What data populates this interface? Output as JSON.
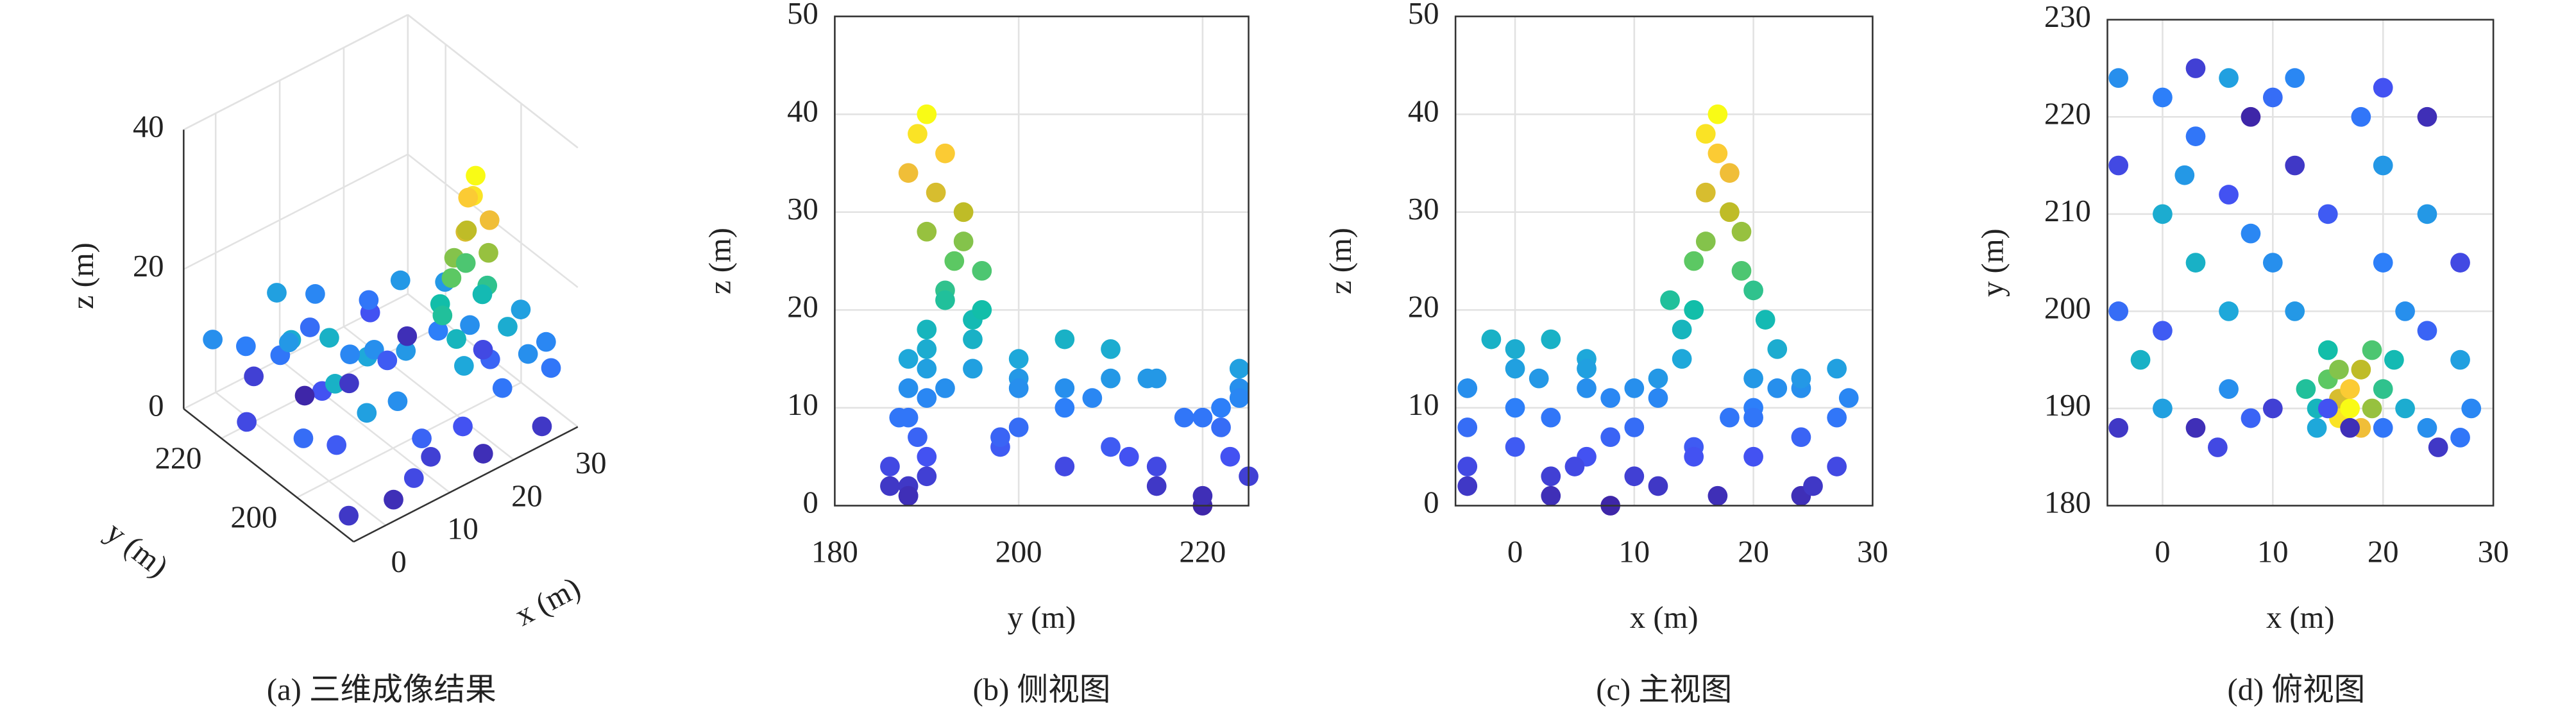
{
  "points": {
    "x": [
      -4,
      -4,
      -4,
      -4,
      0,
      0,
      0,
      0,
      3,
      3,
      3,
      3,
      6,
      6,
      6,
      6,
      8,
      8,
      8,
      -2,
      2,
      5,
      10,
      10,
      10,
      12,
      12,
      12,
      20,
      20,
      20,
      24,
      24,
      24,
      24,
      27,
      27,
      27,
      28,
      25,
      22,
      18,
      15,
      14,
      15,
      16,
      16,
      17,
      17,
      18,
      19,
      20,
      21,
      15,
      18,
      16,
      19,
      14,
      22,
      13,
      17,
      15,
      20
    ],
    "y": [
      188,
      200,
      215,
      224,
      190,
      198,
      210,
      222,
      188,
      205,
      218,
      225,
      192,
      200,
      212,
      224,
      189,
      208,
      220,
      195,
      214,
      186,
      190,
      205,
      222,
      200,
      215,
      224,
      205,
      215,
      223,
      188,
      198,
      210,
      220,
      187,
      195,
      205,
      190,
      186,
      200,
      220,
      210,
      190,
      193,
      191,
      189,
      190,
      192,
      194,
      190,
      192,
      195,
      196,
      188,
      194,
      196,
      188,
      190,
      192,
      188,
      190,
      188
    ],
    "z": [
      2,
      8,
      4,
      12,
      14,
      6,
      16,
      10,
      1,
      17,
      9,
      3,
      12,
      15,
      5,
      14,
      7,
      11,
      0,
      17,
      13,
      4,
      3,
      12,
      8,
      13,
      2,
      11,
      10,
      13,
      5,
      12,
      7,
      13,
      1,
      9,
      14,
      4,
      11,
      2,
      12,
      9,
      6,
      18,
      25,
      32,
      38,
      40,
      36,
      30,
      28,
      22,
      19,
      20,
      34,
      27,
      24,
      15,
      16,
      21,
      1,
      5,
      9
    ]
  },
  "colormap": [
    "#3e26a8",
    "#4352f2",
    "#2d7ff9",
    "#1ea8da",
    "#12bea9",
    "#5cc863",
    "#bfbc27",
    "#fcbf3c",
    "#f9fb15"
  ],
  "clim": [
    0,
    40
  ],
  "chart_data": [
    {
      "type": "scatter3d",
      "caption": "(a) 三维成像结果",
      "xlabel": "x (m)",
      "ylabel": "y (m)",
      "zlabel": "z (m)",
      "xlim": [
        -5,
        30
      ],
      "ylim": [
        185,
        230
      ],
      "zlim": [
        0,
        40
      ],
      "xticks": [
        0,
        10,
        20,
        30
      ],
      "yticks": [
        200,
        220
      ],
      "zticks": [
        0,
        20,
        40
      ],
      "grid": true
    },
    {
      "type": "scatter",
      "caption": "(b) 侧视图",
      "xlabel": "y (m)",
      "ylabel": "z (m)",
      "xlim": [
        180,
        225
      ],
      "ylim": [
        0,
        50
      ],
      "xticks": [
        180,
        200,
        220
      ],
      "yticks": [
        0,
        10,
        20,
        30,
        40,
        50
      ],
      "grid": true
    },
    {
      "type": "scatter",
      "caption": "(c) 主视图",
      "xlabel": "x (m)",
      "ylabel": "z (m)",
      "xlim": [
        -5,
        30
      ],
      "ylim": [
        0,
        50
      ],
      "xticks": [
        0,
        10,
        20,
        30
      ],
      "yticks": [
        0,
        10,
        20,
        30,
        40,
        50
      ],
      "grid": true
    },
    {
      "type": "scatter",
      "caption": "(d) 俯视图",
      "xlabel": "x (m)",
      "ylabel": "y (m)",
      "xlim": [
        -5,
        30
      ],
      "ylim": [
        180,
        230
      ],
      "xticks": [
        0,
        10,
        20,
        30
      ],
      "yticks": [
        180,
        190,
        200,
        210,
        220,
        230
      ],
      "grid": true
    }
  ]
}
